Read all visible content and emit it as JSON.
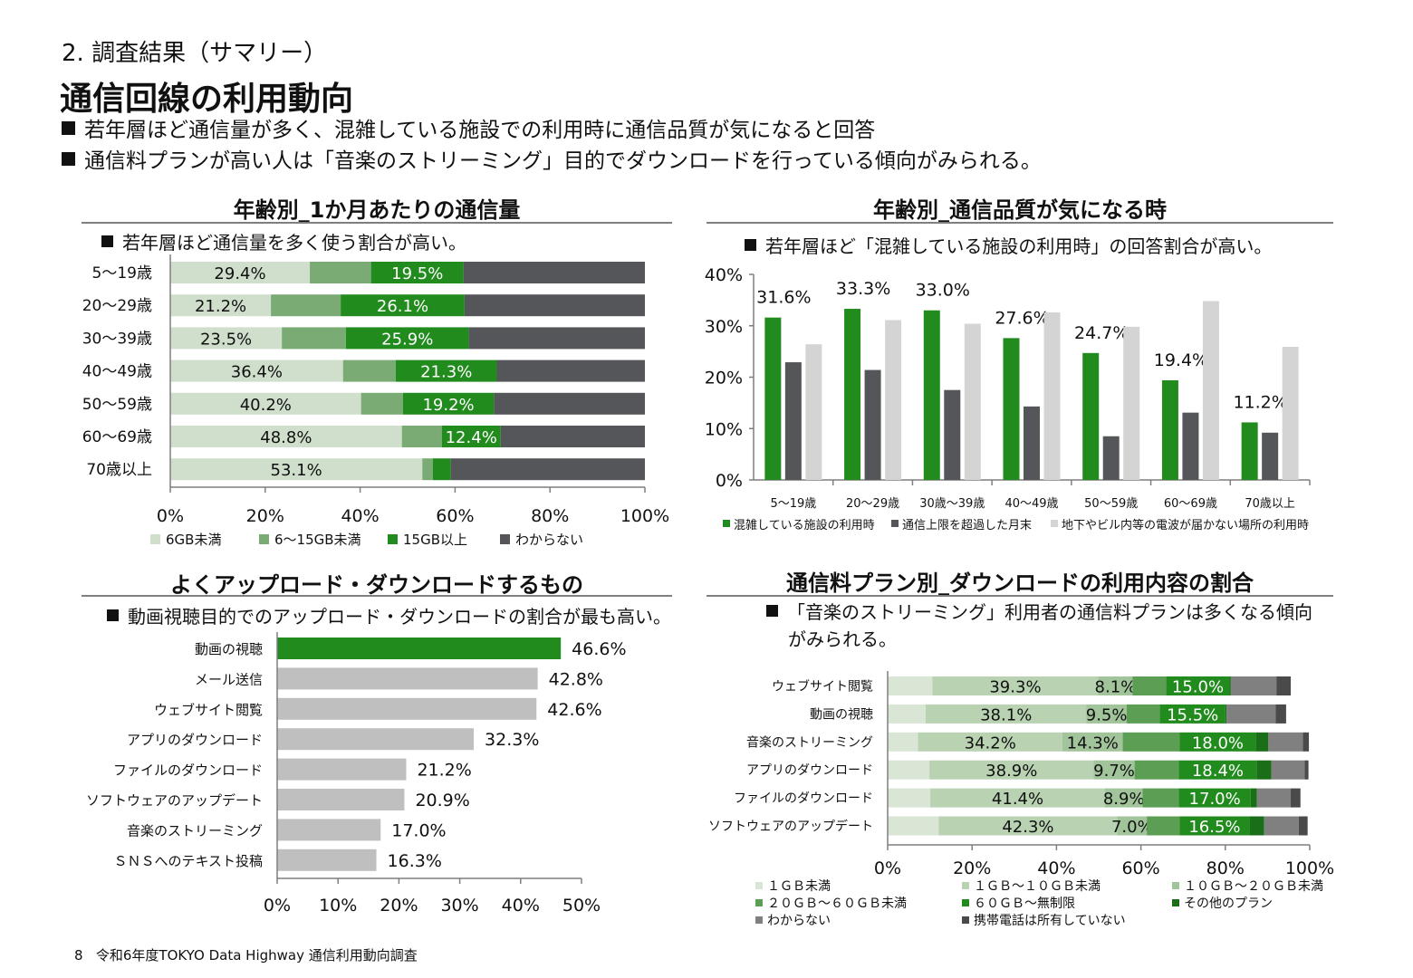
{
  "header": {
    "section_label": "2. 調査結果（サマリー）",
    "title": "通信回線の利用動向",
    "bullets": [
      "若年層ほど通信量が多く、混雑している施設での利用時に通信品質が気になると回答",
      "通信料プランが高い人は「音楽のストリーミング」目的でダウンロードを行っている傾向がみられる。"
    ]
  },
  "footer": {
    "page_number": "8",
    "text": "令和6年度TOKYO Data Highway 通信利用動向調査"
  },
  "colors": {
    "dark_green": "#228b1e",
    "mid_green": "#6aa66a",
    "light_green": "#cfdfcb",
    "dark_gray": "#545659",
    "gray": "#bfbfbf",
    "light_gray": "#d4d4d4",
    "axis": "#7f7f7f"
  },
  "chart_data": [
    {
      "type": "bar",
      "orientation": "horizontal",
      "stacked": true,
      "title": "年齢別_1か月あたりの通信量",
      "note": "若年層ほど通信量を多く使う割合が高い。",
      "categories": [
        "5～19歳",
        "20～29歳",
        "30～39歳",
        "40～49歳",
        "50～59歳",
        "60～69歳",
        "70歳以上"
      ],
      "series": [
        {
          "name": "6GB未満",
          "values": [
            29.4,
            21.2,
            23.5,
            36.4,
            40.2,
            48.8,
            53.1
          ],
          "color": "#cfdfcb"
        },
        {
          "name": "6～15GB未満",
          "values": [
            12.9,
            14.7,
            13.5,
            11.1,
            8.8,
            8.4,
            2.2
          ],
          "color": "#7aab74"
        },
        {
          "name": "15GB以上",
          "values": [
            19.5,
            26.1,
            25.9,
            21.3,
            19.2,
            12.4,
            3.8
          ],
          "color": "#228b1e"
        },
        {
          "name": "わからない",
          "values": [
            38.2,
            38.0,
            37.1,
            31.2,
            31.8,
            30.4,
            40.9
          ],
          "color": "#545659"
        }
      ],
      "labeled_series": [
        0,
        2
      ],
      "hidden_labels": [
        [
          2,
          6
        ]
      ],
      "xlim": [
        0,
        100
      ],
      "xticks": [
        "0%",
        "20%",
        "40%",
        "60%",
        "80%",
        "100%"
      ],
      "legend": "bottom"
    },
    {
      "type": "bar",
      "orientation": "vertical",
      "stacked": false,
      "title": "年齢別_通信品質が気になる時",
      "note": "若年層ほど「混雑している施設の利用時」の回答割合が高い。",
      "categories": [
        "5～19歳",
        "20～29歳",
        "30歳～39歳",
        "40～49歳",
        "50～59歳",
        "60～69歳",
        "70歳以上"
      ],
      "series": [
        {
          "name": "混雑している施設の利用時",
          "values": [
            31.6,
            33.3,
            33.0,
            27.6,
            24.7,
            19.4,
            11.2
          ],
          "color": "#228b1e"
        },
        {
          "name": "通信上限を超過した月末",
          "values": [
            22.9,
            21.4,
            17.5,
            14.3,
            8.5,
            13.1,
            9.2
          ],
          "color": "#545659"
        },
        {
          "name": "地下やビル内等の電波が届かない場所の利用時",
          "values": [
            26.4,
            31.1,
            30.4,
            32.6,
            29.8,
            34.8,
            25.9
          ],
          "color": "#d4d4d4"
        }
      ],
      "labeled_series": [
        0
      ],
      "ylim": [
        0,
        40
      ],
      "yticks": [
        "0%",
        "10%",
        "20%",
        "30%",
        "40%"
      ],
      "legend": "bottom"
    },
    {
      "type": "bar",
      "orientation": "horizontal",
      "stacked": false,
      "title": "よくアップロード・ダウンロードするもの",
      "note": "動画視聴目的でのアップロード・ダウンロードの割合が最も高い。",
      "categories": [
        "動画の視聴",
        "メール送信",
        "ウェブサイト閲覧",
        "アプリのダウンロード",
        "ファイルのダウンロード",
        "ソフトウェアのアップデート",
        "音楽のストリーミング",
        "ＳＮＳへのテキスト投稿"
      ],
      "values": [
        46.6,
        42.8,
        42.6,
        32.3,
        21.2,
        20.9,
        17.0,
        16.3
      ],
      "value_labels": [
        "46.6%",
        "42.8%",
        "42.6%",
        "32.3%",
        "21.2%",
        "20.9%",
        "17.0%",
        "16.3%"
      ],
      "highlight_index": 0,
      "highlight_color": "#228b1e",
      "bar_color": "#bfbfbf",
      "xlim": [
        0,
        50
      ],
      "xticks": [
        "0%",
        "10%",
        "20%",
        "30%",
        "40%",
        "50%"
      ]
    },
    {
      "type": "bar",
      "orientation": "horizontal",
      "stacked": true,
      "title": "通信料プラン別_ダウンロードの利用内容の割合",
      "note_lines": [
        "「音楽のストリーミング」利用者の通信料プランは多くなる傾向",
        "がみられる。"
      ],
      "categories": [
        "ウェブサイト閲覧",
        "動画の視聴",
        "音楽のストリーミング",
        "アプリのダウンロード",
        "ファイルのダウンロード",
        "ソフトウェアのアップデート"
      ],
      "series": [
        {
          "name": "１ＧＢ未満",
          "values": [
            10.6,
            9.0,
            7.2,
            9.9,
            10.1,
            12.1
          ],
          "color": "#d9e6d5"
        },
        {
          "name": "１ＧＢ～１０ＧＢ未満",
          "values": [
            39.3,
            38.1,
            34.2,
            38.9,
            41.4,
            42.3
          ],
          "color": "#b8d2b2"
        },
        {
          "name": "１０ＧＢ～２０ＧＢ未満",
          "values": [
            8.1,
            9.5,
            14.3,
            9.7,
            8.9,
            7.0
          ],
          "color": "#a1c49b"
        },
        {
          "name": "２０ＧＢ～６０ＧＢ未満",
          "values": [
            8.0,
            7.9,
            13.5,
            10.5,
            8.6,
            7.8
          ],
          "color": "#5d9e55"
        },
        {
          "name": "６０ＧＢ～無制限",
          "values": [
            15.0,
            15.5,
            18.0,
            18.4,
            17.0,
            16.5
          ],
          "color": "#228b1e"
        },
        {
          "name": "その他のプラン",
          "values": [
            0.3,
            0.3,
            3.0,
            3.5,
            1.5,
            3.5
          ],
          "color": "#1a6e17"
        },
        {
          "name": "わからない",
          "values": [
            10.8,
            11.6,
            8.2,
            7.9,
            8.0,
            8.2
          ],
          "color": "#808080"
        },
        {
          "name": "携帯電話は所有していない",
          "values": [
            3.4,
            2.5,
            1.4,
            0.9,
            2.3,
            2.1
          ],
          "color": "#4a4a4a"
        }
      ],
      "labeled_series": [
        1,
        2,
        4
      ],
      "xlim": [
        0,
        100
      ],
      "xticks": [
        "0%",
        "20%",
        "40%",
        "60%",
        "80%",
        "100%"
      ],
      "legend": "bottom"
    }
  ]
}
